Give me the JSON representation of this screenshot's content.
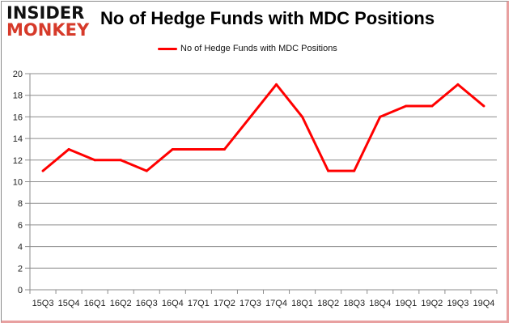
{
  "logo": {
    "line1": "INSIDER",
    "line2": "MONKEY"
  },
  "chart_data": {
    "type": "line",
    "title": "No of Hedge Funds with MDC Positions",
    "xlabel": "",
    "ylabel": "",
    "categories": [
      "15Q3",
      "15Q4",
      "16Q1",
      "16Q2",
      "16Q3",
      "16Q4",
      "17Q1",
      "17Q2",
      "17Q3",
      "17Q4",
      "18Q1",
      "18Q2",
      "18Q3",
      "18Q4",
      "19Q1",
      "19Q2",
      "19Q3",
      "19Q4"
    ],
    "series": [
      {
        "name": "No of Hedge Funds with MDC Positions",
        "color": "#ff0000",
        "values": [
          11,
          13,
          12,
          12,
          11,
          13,
          13,
          13,
          16,
          19,
          16,
          11,
          11,
          16,
          17,
          17,
          19,
          17
        ]
      }
    ],
    "ylim": [
      0,
      20
    ],
    "yticks": [
      0,
      2,
      4,
      6,
      8,
      10,
      12,
      14,
      16,
      18,
      20
    ],
    "grid": true,
    "legend": "top-center"
  }
}
